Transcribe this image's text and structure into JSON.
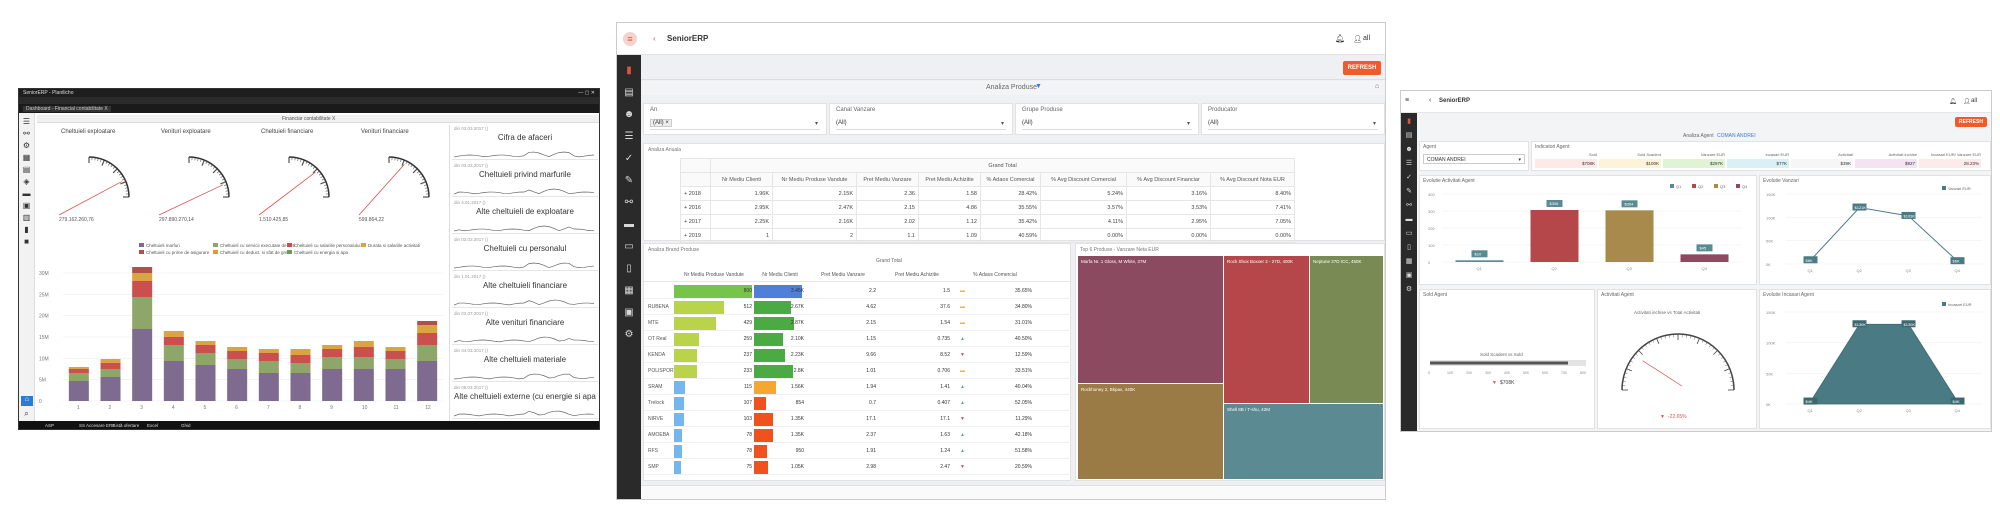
{
  "s1": {
    "window_title": "SeniorERP - Planilicho",
    "tab_label": "Dashboard - Financial contabilitate X",
    "dashboard_title": "Financiar contabilitate X",
    "gauges": [
      {
        "title": "Cheltuieli exploatare",
        "value": "279.162.260,76"
      },
      {
        "title": "Venituri exploatare",
        "value": "297.890.270,14"
      },
      {
        "title": "Cheltuieli financiare",
        "value": "1.510.425,85"
      },
      {
        "title": "Venituri financiare",
        "value": "599.864,22"
      }
    ],
    "legend": [
      "Cheltuieli marfuri",
      "Cheltuieli cu servicii executate de terti",
      "Cheltuieli cu salariile personalului",
      "Durata si salariile activitati",
      "Cheltuieli cu prime de asigurare",
      "Cheltuieli cu deduct. si sfat de grefa",
      "Cheltuieli cu energia si apa"
    ],
    "chart_ylabels": [
      "30M",
      "25M",
      "20M",
      "15M",
      "10M",
      "5M",
      "0"
    ],
    "chart_xlabels": [
      "1",
      "2",
      "3",
      "4",
      "5",
      "6",
      "7",
      "8",
      "9",
      "10",
      "11",
      "12"
    ],
    "colors": [
      "#7e6b8f",
      "#8fa66a",
      "#c9504e",
      "#d9a441",
      "#b0504a",
      "#e8962f",
      "#6f9a5a"
    ],
    "sparks": [
      {
        "date": "din 03.03.2017 ()",
        "title": "Cifra de afaceri"
      },
      {
        "date": "din 03.03.2017 ()",
        "title": "Cheltuieli privind marfurile"
      },
      {
        "date": "din 4.01.2017 ()",
        "title": "Alte cheltuieli de exploatare"
      },
      {
        "date": "din 03.03.2017 ()",
        "title": "Cheltuieli cu personalul"
      },
      {
        "date": "din 1.01.2017 ()",
        "title": "Alte cheltuieli financiare"
      },
      {
        "date": "din 03.07.2017 ()",
        "title": "Alte venituri financiare"
      },
      {
        "date": "din 04.03.2017 ()",
        "title": "Alte cheltuieli materiale"
      },
      {
        "date": "din 05.03.2017 ()",
        "title": "Alte cheltuieli externe (cu energie si apa)"
      }
    ],
    "taskbar": [
      "ASP",
      "SS Accesare ERP",
      "Listă ofertare",
      "Excel",
      "Ghid"
    ]
  },
  "s2": {
    "app_title": "SeniorERP",
    "user": "all",
    "refresh": "REFRESH",
    "section_title": "Analiza Produse",
    "filters": [
      {
        "label": "An",
        "value": "(All)"
      },
      {
        "label": "Canal Vanzare",
        "value": "(All)"
      },
      {
        "label": "Grupe Produse",
        "value": "(All)"
      },
      {
        "label": "Producator",
        "value": "(All)"
      }
    ],
    "annual_title": "Analiza Anuala",
    "annual_group": "Grand Total",
    "annual_headers": [
      "Nr Mediu Clienti",
      "Nr Mediu Produse Vandute",
      "Pret Mediu Vanzare",
      "Pret Mediu Achizitie",
      "% Adaos Comercial",
      "% Avg Discount Comercial",
      "% Avg Discount Financiar",
      "% Avg Discount Nota EUR"
    ],
    "annual_rows": [
      {
        "year": "+ 2018",
        "cells": [
          "1.96K",
          "2.15K",
          "2.36",
          "1.58",
          "28.42%",
          "5.24%",
          "3.16%",
          "8.40%"
        ]
      },
      {
        "year": "+ 2016",
        "cells": [
          "2.95K",
          "2.47K",
          "2.15",
          "4.86",
          "35.55%",
          "3.57%",
          "3.53%",
          "7.41%"
        ]
      },
      {
        "year": "+ 2017",
        "cells": [
          "2.25K",
          "2.16K",
          "2.02",
          "1.12",
          "35.42%",
          "4.11%",
          "2.95%",
          "7.05%"
        ]
      },
      {
        "year": "+ 2019",
        "cells": [
          "1",
          "2",
          "1.1",
          "1.09",
          "40.59%",
          "0.00%",
          "0.00%",
          "0.00%"
        ]
      }
    ],
    "brand_title": "Analiza Brand Produse",
    "brand_group": "Grand Total",
    "brand_headers": [
      "Nr Mediu Produse Vandute",
      "Nr Mediu Clienti",
      "Pret Mediu Vanzare",
      "Pret Mediu Achizitie",
      "% Adaos Comercial"
    ],
    "brands": [
      {
        "name": "",
        "v1": "800",
        "v2": "3.45K",
        "v3": "2.2",
        "v4": "1.5",
        "v5": "35.65%",
        "f1": 1.0,
        "f2": 1.0,
        "up": 0
      },
      {
        "name": "RUBENA",
        "v1": "512",
        "v2": "2.67K",
        "v3": "4.62",
        "v4": "37.6",
        "v5": "34.80%",
        "f1": 0.64,
        "f2": 0.77,
        "up": 0
      },
      {
        "name": "MTE",
        "v1": "429",
        "v2": "2.87K",
        "v3": "2.15",
        "v4": "1.54",
        "v5": "31.01%",
        "f1": 0.54,
        "f2": 0.83,
        "up": 0
      },
      {
        "name": "OT Real",
        "v1": "259",
        "v2": "2.10K",
        "v3": "1.15",
        "v4": "0.735",
        "v5": "40.50%",
        "f1": 0.32,
        "f2": 0.61,
        "up": 1
      },
      {
        "name": "KENDA",
        "v1": "237",
        "v2": "2.23K",
        "v3": "9.66",
        "v4": "8.52",
        "v5": "12.59%",
        "f1": 0.3,
        "f2": 0.65,
        "up": -1
      },
      {
        "name": "POLISPORT",
        "v1": "233",
        "v2": "2.8K",
        "v3": "1.01",
        "v4": "0.706",
        "v5": "33.51%",
        "f1": 0.29,
        "f2": 0.81,
        "up": 0
      },
      {
        "name": "SRAM",
        "v1": "115",
        "v2": "1.56K",
        "v3": "1.94",
        "v4": "1.41",
        "v5": "40.04%",
        "f1": 0.14,
        "f2": 0.45,
        "up": 1
      },
      {
        "name": "Trelock",
        "v1": "107",
        "v2": "854",
        "v3": "0.7",
        "v4": "0.407",
        "v5": "52.05%",
        "f1": 0.13,
        "f2": 0.25,
        "up": 1
      },
      {
        "name": "NIRVE",
        "v1": "103",
        "v2": "1.35K",
        "v3": "17.1",
        "v4": "17.1",
        "v5": "11.29%",
        "f1": 0.13,
        "f2": 0.39,
        "up": -1
      },
      {
        "name": "AMOEBA",
        "v1": "78",
        "v2": "1.35K",
        "v3": "2.37",
        "v4": "1.63",
        "v5": "42.18%",
        "f1": 0.1,
        "f2": 0.39,
        "up": 1
      },
      {
        "name": "RFS",
        "v1": "78",
        "v2": "950",
        "v3": "1.91",
        "v4": "1.24",
        "v5": "51.58%",
        "f1": 0.1,
        "f2": 0.28,
        "up": 1
      },
      {
        "name": "SMP",
        "v1": "75",
        "v2": "1.05K",
        "v3": "2.98",
        "v4": "2.47",
        "v5": "20.59%",
        "f1": 0.09,
        "f2": 0.3,
        "up": -1
      }
    ],
    "treemap_title": "Top 6 Produse - Vanzare Neta EUR",
    "treemap": [
      {
        "label": "Marfa Nr. 1 Gloss, M White, 27M",
        "color": "#8b4a5f"
      },
      {
        "label": "Rock Shox Boxxer 2 - 27D, 400K",
        "color": "#b5474a"
      },
      {
        "label": "Neptune 27D ICC, 450K",
        "color": "#7a8a55"
      },
      {
        "label": "Rockhoney 2, Bkpax, 440K",
        "color": "#9a7a45"
      },
      {
        "label": "Shell 8B / T-shu, 42M",
        "color": "#5b8a93"
      }
    ]
  },
  "s3": {
    "app_title": "SeniorERP",
    "user": "all",
    "refresh": "REFRESH",
    "page_title": "Analiza Agent",
    "agent_name": "COMAN ANDREI",
    "agent_label": "Agent",
    "agent_value": "COMAN ANDREI",
    "kpi_title": "Indicatori Agent",
    "kpis": [
      {
        "label": "Sold",
        "value": "$708K",
        "color": "#fde9e6"
      },
      {
        "label": "Sold Scadent",
        "value": "$100K",
        "color": "#fdf3d8"
      },
      {
        "label": "Vanzare EUR",
        "value": "$297K",
        "color": "#dff3d5"
      },
      {
        "label": "Incasari EUR",
        "value": "$77K",
        "color": "#d9f1f4"
      },
      {
        "label": "Activitati",
        "value": "$39K",
        "color": "#f6f6f6"
      },
      {
        "label": "Activitati inchise",
        "value": "$927",
        "color": "#f3e3f3"
      },
      {
        "label": "Incasari EUR/ Vanzare EUR",
        "value": "28.23%",
        "color": "#fdeaea"
      }
    ],
    "bar_title": "Evolutie Activitati Agent",
    "bar_legend": [
      "Q1",
      "Q2",
      "Q3",
      "Q4"
    ],
    "bar_quarters": [
      "Q1",
      "Q2",
      "Q3",
      "Q4"
    ],
    "bar_values": [
      10,
      306,
      304,
      45
    ],
    "bar_labels": [
      "$10",
      "$306",
      "$304",
      "$45"
    ],
    "bar_colors": [
      "#5b8a93",
      "#b5474a",
      "#a88a4d",
      "#8b4a5f"
    ],
    "bar_yticks": [
      "400",
      "300",
      "200",
      "100",
      "0"
    ],
    "line_title": "Evolutie Vanzari",
    "line_legend": "Vanzari EUR",
    "line_values": [
      8,
      121,
      103,
      6
    ],
    "line_labels": [
      "$8K",
      "$121K",
      "$103K",
      "$6K"
    ],
    "line_yticks": [
      "150K",
      "100K",
      "50K",
      "0K"
    ],
    "line_x": [
      "Q1",
      "Q2",
      "Q3",
      "Q4"
    ],
    "sold_title": "Sold Agent",
    "sold_caption": "Sold Scadent vs Sold",
    "sold_value": "$708K",
    "sold_ticks": [
      "0",
      "100",
      "200",
      "300",
      "400",
      "500",
      "600",
      "700",
      "800"
    ],
    "gauge_title": "Activitati Agent",
    "gauge_caption": "Activitati inchise vs Total Activitati",
    "gauge_value": "-22.65%",
    "area_title": "Evolutie Incasari Agent",
    "area_legend": "Incasari EUR",
    "area_values": [
      4,
      130,
      130,
      4
    ],
    "area_labels": [
      "$4K",
      "$130K",
      "$130K",
      "$4K"
    ],
    "area_yticks": [
      "150K",
      "100K",
      "50K",
      "0K"
    ],
    "area_x": [
      "Q1",
      "Q2",
      "Q3",
      "Q4"
    ]
  }
}
